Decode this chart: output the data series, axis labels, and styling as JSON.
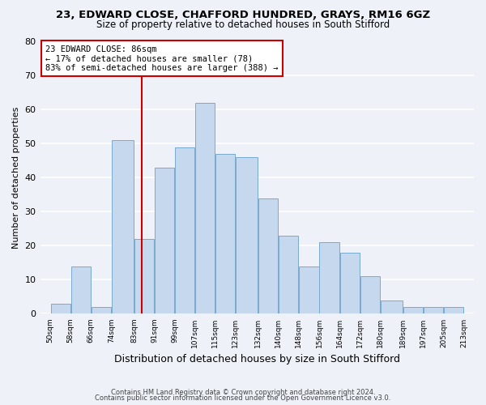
{
  "title1": "23, EDWARD CLOSE, CHAFFORD HUNDRED, GRAYS, RM16 6GZ",
  "title2": "Size of property relative to detached houses in South Stifford",
  "xlabel": "Distribution of detached houses by size in South Stifford",
  "ylabel": "Number of detached properties",
  "bar_left_edges": [
    50,
    58,
    66,
    74,
    83,
    91,
    99,
    107,
    115,
    123,
    132,
    140,
    148,
    156,
    164,
    172,
    180,
    189,
    197,
    205
  ],
  "bar_widths": [
    8,
    8,
    8,
    9,
    8,
    8,
    8,
    8,
    8,
    9,
    8,
    8,
    8,
    8,
    8,
    8,
    9,
    8,
    8,
    8
  ],
  "bar_heights": [
    3,
    14,
    2,
    51,
    22,
    43,
    49,
    62,
    47,
    46,
    34,
    23,
    14,
    21,
    18,
    11,
    4,
    2,
    2,
    2
  ],
  "bar_color": "#c5d8ee",
  "bar_edgecolor": "#7aaacf",
  "property_line_x": 86,
  "annotation_title": "23 EDWARD CLOSE: 86sqm",
  "annotation_line1": "← 17% of detached houses are smaller (78)",
  "annotation_line2": "83% of semi-detached houses are larger (388) →",
  "annotation_box_color": "#ffffff",
  "annotation_box_edgecolor": "#cc0000",
  "line_color": "#cc0000",
  "tick_labels": [
    "50sqm",
    "58sqm",
    "66sqm",
    "74sqm",
    "83sqm",
    "91sqm",
    "99sqm",
    "107sqm",
    "115sqm",
    "123sqm",
    "132sqm",
    "140sqm",
    "148sqm",
    "156sqm",
    "164sqm",
    "172sqm",
    "180sqm",
    "189sqm",
    "197sqm",
    "205sqm",
    "213sqm"
  ],
  "tick_positions": [
    50,
    58,
    66,
    74,
    83,
    91,
    99,
    107,
    115,
    123,
    132,
    140,
    148,
    156,
    164,
    172,
    180,
    189,
    197,
    205,
    213
  ],
  "yticks": [
    0,
    10,
    20,
    30,
    40,
    50,
    60,
    70,
    80
  ],
  "ylim": [
    0,
    80
  ],
  "xlim": [
    46,
    217
  ],
  "footer1": "Contains HM Land Registry data © Crown copyright and database right 2024.",
  "footer2": "Contains public sector information licensed under the Open Government Licence v3.0.",
  "background_color": "#eef2f8"
}
